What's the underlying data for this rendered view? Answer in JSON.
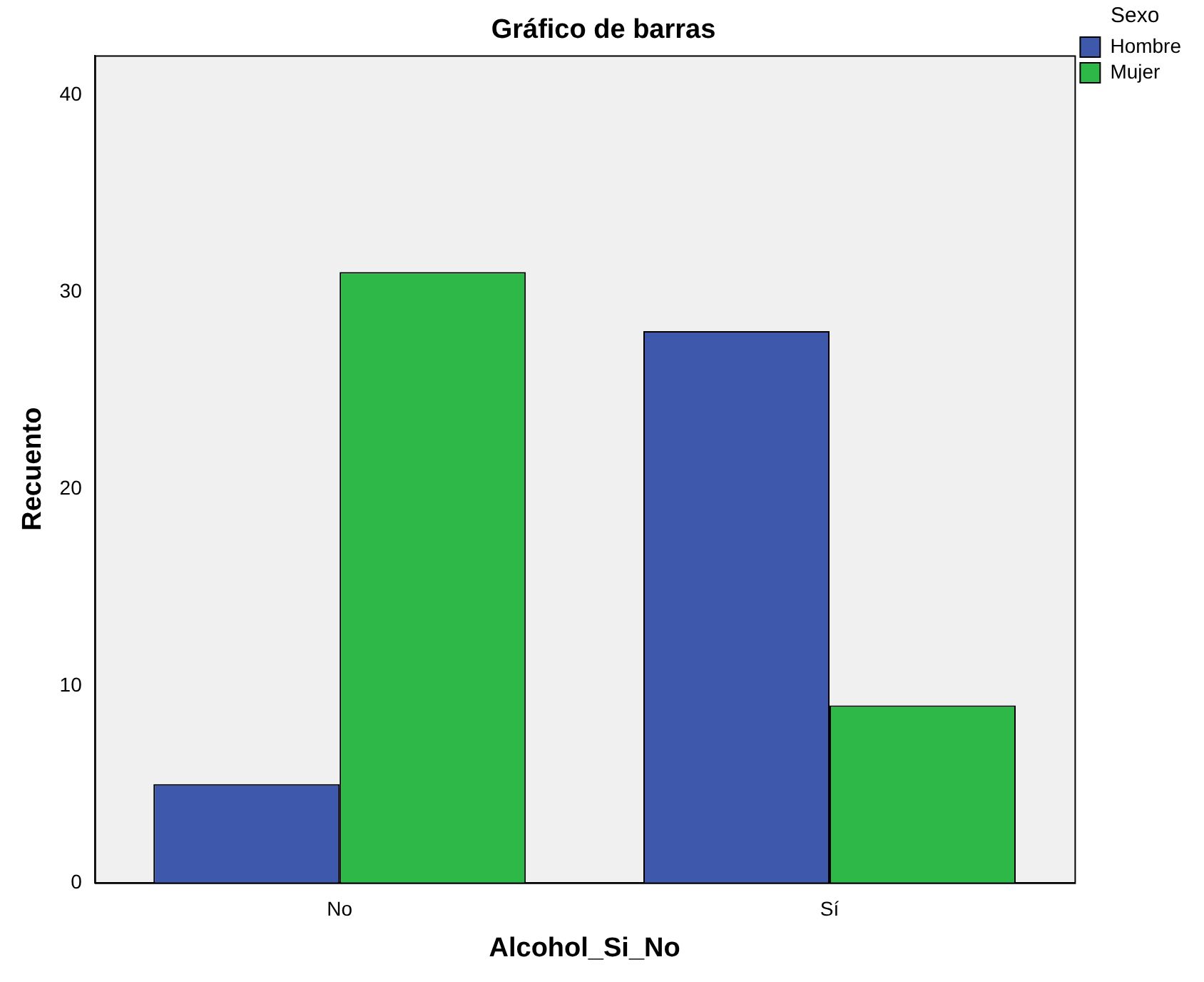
{
  "chart_data": {
    "type": "bar",
    "title": "Gráfico de barras",
    "xlabel": "Alcohol_Si_No",
    "ylabel": "Recuento",
    "legend_title": "Sexo",
    "categories": [
      "No",
      "Sí"
    ],
    "series": [
      {
        "name": "Hombre",
        "color": "#3e58ac",
        "values": [
          5,
          28
        ]
      },
      {
        "name": "Mujer",
        "color": "#2eb848",
        "values": [
          31,
          9
        ]
      }
    ],
    "ylim": [
      0,
      42
    ],
    "yticks": [
      0,
      10,
      20,
      30,
      40
    ],
    "grid": false,
    "legend": "right"
  }
}
